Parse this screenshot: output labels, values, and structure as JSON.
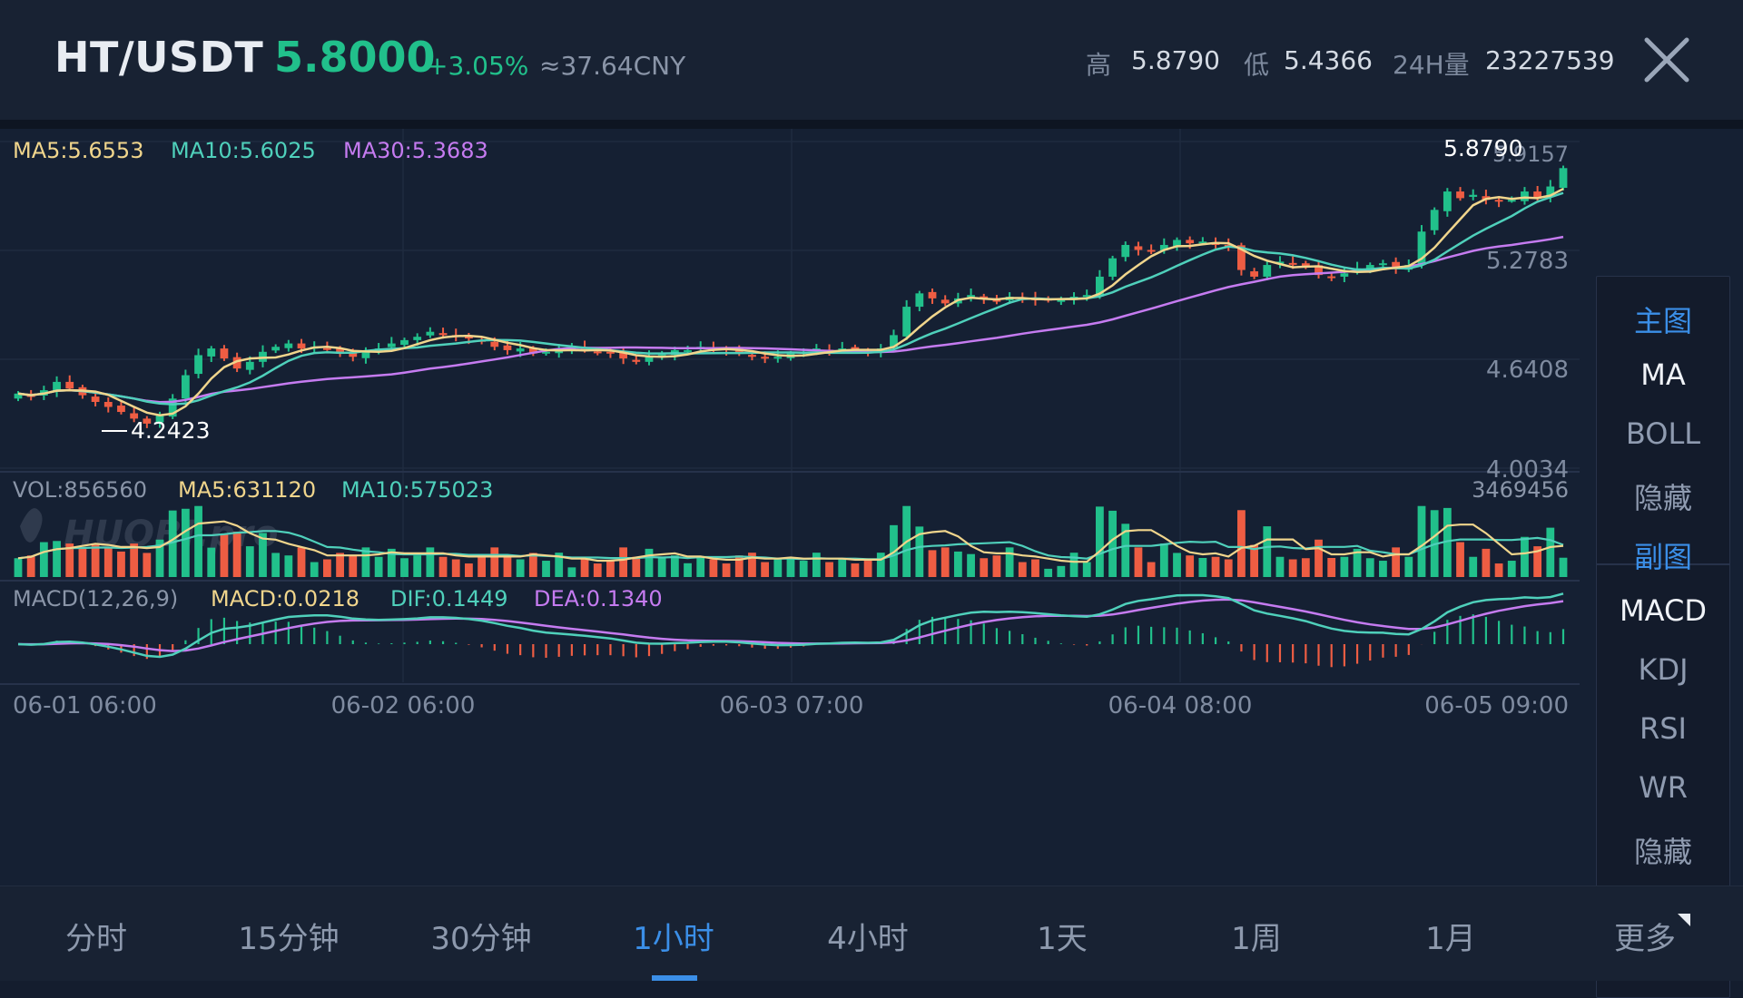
{
  "header": {
    "pair": "HT/USDT",
    "price": "5.8000",
    "change": "+3.05%",
    "cny": "≈37.64CNY",
    "high_label": "高",
    "high_value": "5.8790",
    "low_label": "低",
    "low_value": "5.4366",
    "vol_label": "24H量",
    "vol_value": "23227539"
  },
  "colors": {
    "up": "#21c08b",
    "down": "#ee5d43",
    "ma5": "#f0d58c",
    "ma10": "#4fd0bb",
    "ma30": "#c57bf0",
    "accent": "#3b8fe8"
  },
  "main_legend": {
    "ma5": "MA5:5.6553",
    "ma10": "MA10:5.6025",
    "ma30": "MA30:5.3683"
  },
  "vol_legend": {
    "vol": "VOL:856560",
    "ma5": "MA5:631120",
    "ma10": "MA10:575023",
    "max": "3469456"
  },
  "macd_legend": {
    "params": "MACD(12,26,9)",
    "macd": "MACD:0.0218",
    "dif": "DIF:0.1449",
    "dea": "DEA:0.1340"
  },
  "markers": {
    "high": "5.8790",
    "low": "4.2423",
    "price_overlay": "5.9157"
  },
  "watermark": "HUOBI.pro",
  "side_panel": {
    "main_title": "主图",
    "main_items": [
      "MA",
      "BOLL",
      "隐藏"
    ],
    "sub_title": "副图",
    "sub_items": [
      "MACD",
      "KDJ",
      "RSI",
      "WR",
      "隐藏"
    ]
  },
  "tabs": [
    "分时",
    "15分钟",
    "30分钟",
    "1小时",
    "4小时",
    "1天",
    "1周",
    "1月",
    "更多"
  ],
  "active_tab": "1小时",
  "chart_data": {
    "type": "candlestick",
    "y_axis_ticks": [
      "5.9157",
      "5.2783",
      "4.6408",
      "4.0034"
    ],
    "ylim": [
      4.0034,
      5.9157
    ],
    "x_axis_labels": [
      "06-01 06:00",
      "06-02 06:00",
      "06-03 07:00",
      "06-04 08:00",
      "06-05 09:00"
    ],
    "close_series": [
      4.45,
      4.43,
      4.47,
      4.52,
      4.48,
      4.44,
      4.4,
      4.37,
      4.34,
      4.3,
      4.27,
      4.32,
      4.42,
      4.56,
      4.68,
      4.72,
      4.66,
      4.6,
      4.64,
      4.7,
      4.73,
      4.75,
      4.72,
      4.73,
      4.72,
      4.69,
      4.67,
      4.7,
      4.72,
      4.75,
      4.77,
      4.79,
      4.82,
      4.8,
      4.79,
      4.78,
      4.76,
      4.73,
      4.71,
      4.72,
      4.69,
      4.7,
      4.72,
      4.72,
      4.71,
      4.7,
      4.69,
      4.66,
      4.64,
      4.67,
      4.69,
      4.71,
      4.71,
      4.73,
      4.72,
      4.71,
      4.69,
      4.67,
      4.66,
      4.67,
      4.69,
      4.7,
      4.72,
      4.71,
      4.72,
      4.71,
      4.7,
      4.72,
      4.8,
      4.97,
      5.05,
      5.02,
      4.99,
      5.02,
      5.04,
      5.02,
      5.0,
      5.03,
      5.02,
      5.01,
      5.01,
      5.01,
      5.03,
      5.04,
      5.15,
      5.26,
      5.34,
      5.31,
      5.3,
      5.34,
      5.37,
      5.35,
      5.36,
      5.34,
      5.33,
      5.19,
      5.15,
      5.22,
      5.24,
      5.23,
      5.21,
      5.16,
      5.15,
      5.17,
      5.2,
      5.22,
      5.23,
      5.2,
      5.22,
      5.42,
      5.55,
      5.66,
      5.62,
      5.64,
      5.61,
      5.6,
      5.61,
      5.66,
      5.62,
      5.69,
      5.8
    ],
    "volume_max": 3469456
  }
}
